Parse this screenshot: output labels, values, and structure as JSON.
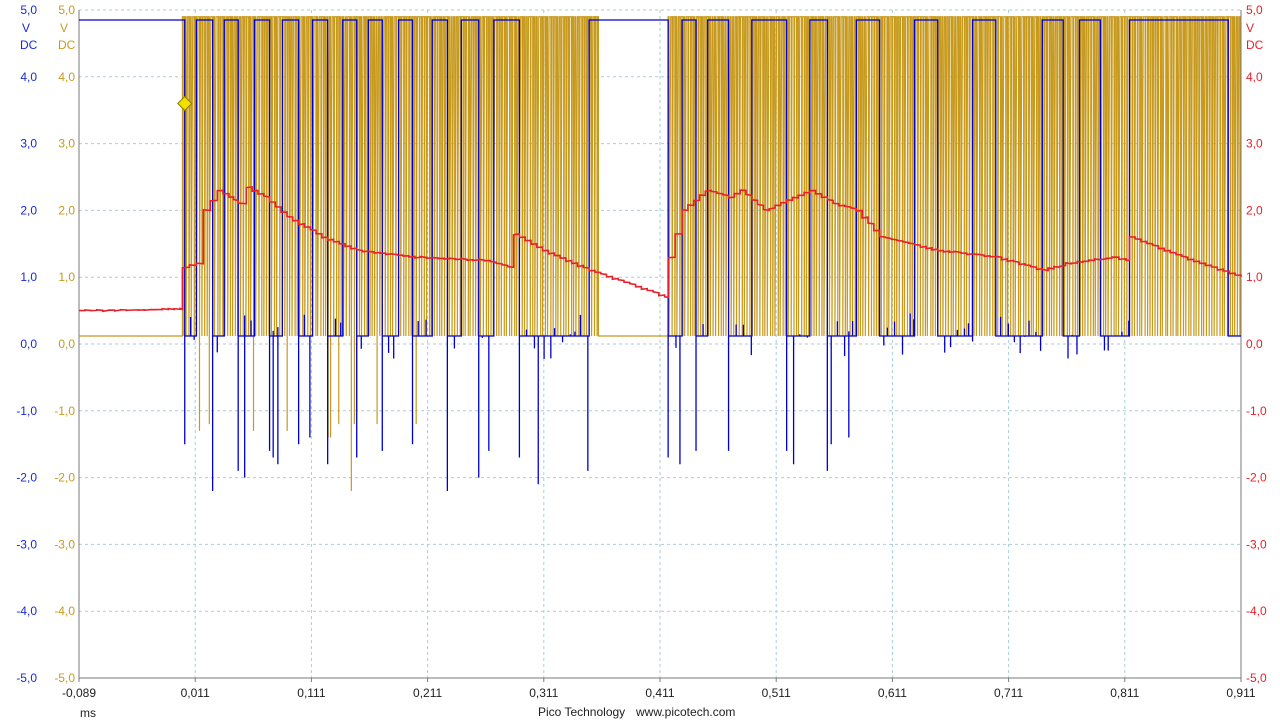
{
  "footer": {
    "brand": "Pico Technology",
    "url": "www.picotech.com"
  },
  "colors": {
    "ch_a": "#0000d0",
    "ch_b": "#c79a1e",
    "ch_c": "#e8202a",
    "grid": "#a9cdd6"
  },
  "chart_data": {
    "type": "line",
    "title": "",
    "grid": true,
    "xlabel": "ms",
    "x_ticks": [
      "-0,089",
      "0,011",
      "0,111",
      "0,211",
      "0,311",
      "0,411",
      "0,511",
      "0,611",
      "0,711",
      "0,811",
      "0,911"
    ],
    "x_tick_values": [
      -0.089,
      0.011,
      0.111,
      0.211,
      0.311,
      0.411,
      0.511,
      0.611,
      0.711,
      0.811,
      0.911
    ],
    "xlim": [
      -0.089,
      0.911
    ],
    "ylim": [
      -5,
      5
    ],
    "y_ticks": [
      "5,0",
      "4,0",
      "3,0",
      "2,0",
      "1,0",
      "0,0",
      "-1,0",
      "-2,0",
      "-3,0",
      "-4,0",
      "-5,0"
    ],
    "y_tick_values": [
      5,
      4,
      3,
      2,
      1,
      0,
      -1,
      -2,
      -3,
      -4,
      -5
    ],
    "axes": [
      {
        "side": "left",
        "unit": "V",
        "coupling": "DC",
        "color": "#1a2ad6"
      },
      {
        "side": "left-inner",
        "unit": "V",
        "coupling": "DC",
        "color": "#c79a1e"
      },
      {
        "side": "right",
        "unit": "V",
        "coupling": "DC",
        "color": "#e8202a"
      }
    ],
    "trigger_marker": {
      "x": 0.002,
      "y": 3.6
    },
    "series": [
      {
        "color": "#0000d0",
        "kind": "digital",
        "high": 4.85,
        "low": 0.12,
        "idle_low": 0.05,
        "transitions": [
          0.002,
          0.012,
          0.026,
          0.036,
          0.048,
          0.062,
          0.075,
          0.086,
          0.1,
          0.112,
          0.125,
          0.138,
          0.15,
          0.16,
          0.172,
          0.186,
          0.198,
          0.215,
          0.228,
          0.24,
          0.255,
          0.268,
          0.29,
          0.35,
          0.418,
          0.43,
          0.442,
          0.452,
          0.47,
          0.49,
          0.52,
          0.54,
          0.555,
          0.58,
          0.6,
          0.63,
          0.65,
          0.68,
          0.7,
          0.74,
          0.758,
          0.772,
          0.79,
          0.815,
          0.9
        ],
        "spike_lows": [
          -1.5,
          -2.2,
          -1.9,
          -2.0,
          -1.6,
          -1.7,
          -1.8,
          -1.5,
          -1.4,
          -1.8,
          -1.7,
          -1.6,
          -1.5,
          -2.2,
          -2.0,
          -1.6,
          -1.7,
          -2.1,
          -1.9,
          -1.7,
          -1.8,
          -1.6,
          -1.6,
          -1.6,
          -1.8,
          -1.9,
          -1.5,
          -1.4
        ]
      },
      {
        "color": "#c79a1e",
        "kind": "digital",
        "high": 4.9,
        "low": 0.12,
        "pulse_start": 0.0,
        "pulse_end": 0.358,
        "pulse_start_2": 0.418,
        "pulse_end_2": 0.911,
        "pulses_per_ms": 450,
        "spike_lows": [
          -1.3,
          -1.2,
          -1.3,
          -1.3,
          -1.4,
          -1.4,
          -1.2,
          -2.2,
          -1.2,
          -1.0,
          -1.2,
          -1.2
        ]
      },
      {
        "color": "#e8202a",
        "kind": "analog",
        "x": [
          -0.089,
          -0.002,
          0.0,
          0.012,
          0.018,
          0.03,
          0.04,
          0.048,
          0.055,
          0.07,
          0.09,
          0.12,
          0.15,
          0.2,
          0.26,
          0.28,
          0.285,
          0.31,
          0.35,
          0.4,
          0.415,
          0.418,
          0.43,
          0.45,
          0.47,
          0.48,
          0.5,
          0.54,
          0.56,
          0.58,
          0.6,
          0.65,
          0.7,
          0.74,
          0.76,
          0.8,
          0.812,
          0.815,
          0.86,
          0.911
        ],
        "y": [
          0.5,
          0.52,
          1.15,
          1.2,
          2.0,
          2.3,
          2.2,
          2.1,
          2.35,
          2.2,
          1.9,
          1.6,
          1.4,
          1.3,
          1.25,
          1.15,
          1.65,
          1.4,
          1.1,
          0.8,
          0.7,
          1.3,
          2.0,
          2.3,
          2.2,
          2.3,
          2.0,
          2.3,
          2.1,
          2.0,
          1.6,
          1.4,
          1.3,
          1.1,
          1.2,
          1.3,
          1.25,
          1.6,
          1.3,
          1.0
        ]
      }
    ]
  }
}
